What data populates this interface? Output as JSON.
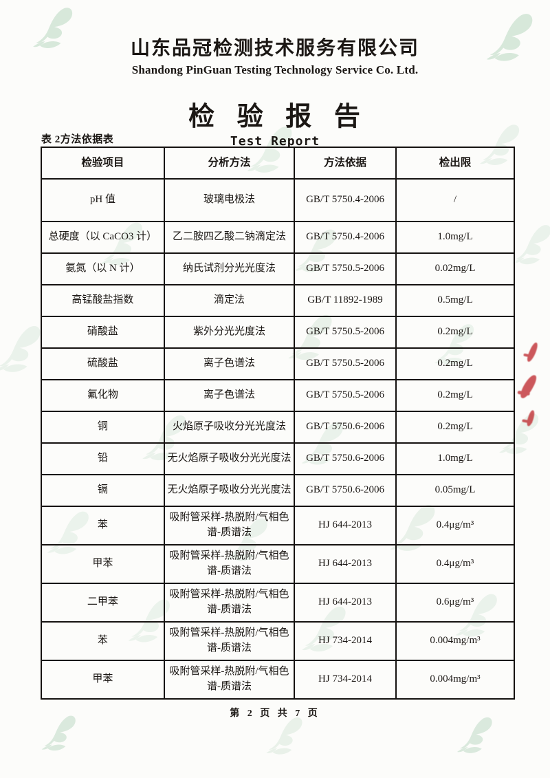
{
  "header": {
    "company_name_cn": "山东品冠检测技术服务有限公司",
    "company_name_en": "Shandong PinGuan Testing Technology Service Co. Ltd.",
    "report_title_cn": "检 验 报 告",
    "report_title_en": "Test Report"
  },
  "table": {
    "caption": "表 2方法依据表",
    "headers": [
      "检验项目",
      "分析方法",
      "方法依据",
      "检出限"
    ],
    "rows": [
      {
        "item": "pH 值",
        "method": "玻璃电极法",
        "standard": "GB/T 5750.4-2006",
        "limit": "/"
      },
      {
        "item": "总硬度（以 CaCO3 计）",
        "method": "乙二胺四乙酸二钠滴定法",
        "standard": "GB/T 5750.4-2006",
        "limit": "1.0mg/L"
      },
      {
        "item": "氨氮（以 N 计）",
        "method": "纳氏试剂分光光度法",
        "standard": "GB/T 5750.5-2006",
        "limit": "0.02mg/L"
      },
      {
        "item": "高锰酸盐指数",
        "method": "滴定法",
        "standard": "GB/T 11892-1989",
        "limit": "0.5mg/L"
      },
      {
        "item": "硝酸盐",
        "method": "紫外分光光度法",
        "standard": "GB/T 5750.5-2006",
        "limit": "0.2mg/L"
      },
      {
        "item": "硫酸盐",
        "method": "离子色谱法",
        "standard": "GB/T 5750.5-2006",
        "limit": "0.2mg/L"
      },
      {
        "item": "氟化物",
        "method": "离子色谱法",
        "standard": "GB/T 5750.5-2006",
        "limit": "0.2mg/L"
      },
      {
        "item": "铜",
        "method": "火焰原子吸收分光光度法",
        "standard": "GB/T 5750.6-2006",
        "limit": "0.2mg/L"
      },
      {
        "item": "铅",
        "method": "无火焰原子吸收分光光度法",
        "standard": "GB/T 5750.6-2006",
        "limit": "1.0mg/L"
      },
      {
        "item": "镉",
        "method": "无火焰原子吸收分光光度法",
        "standard": "GB/T 5750.6-2006",
        "limit": "0.05mg/L"
      },
      {
        "item": "苯",
        "method": "吸附管采样-热脱附/气相色谱-质谱法",
        "standard": "HJ 644-2013",
        "limit": "0.4μg/m³"
      },
      {
        "item": "甲苯",
        "method": "吸附管采样-热脱附/气相色谱-质谱法",
        "standard": "HJ 644-2013",
        "limit": "0.4μg/m³"
      },
      {
        "item": "二甲苯",
        "method": "吸附管采样-热脱附/气相色谱-质谱法",
        "standard": "HJ 644-2013",
        "limit": "0.6μg/m³"
      },
      {
        "item": "苯",
        "method": "吸附管采样-热脱附/气相色谱-质谱法",
        "standard": "HJ 734-2014",
        "limit": "0.004mg/m³"
      },
      {
        "item": "甲苯",
        "method": "吸附管采样-热脱附/气相色谱-质谱法",
        "standard": "HJ 734-2014",
        "limit": "0.004mg/m³"
      }
    ]
  },
  "footer": {
    "page_number_text": "第 2 页 共 7 页"
  },
  "icons": {
    "watermark": "pinguan-leaf-logo"
  },
  "colors": {
    "text": "#1b1714",
    "table_border": "#151210",
    "watermark_green": "#b9d8c1",
    "stamp_red": "#bf2b30",
    "paper": "#fcfcfa"
  }
}
